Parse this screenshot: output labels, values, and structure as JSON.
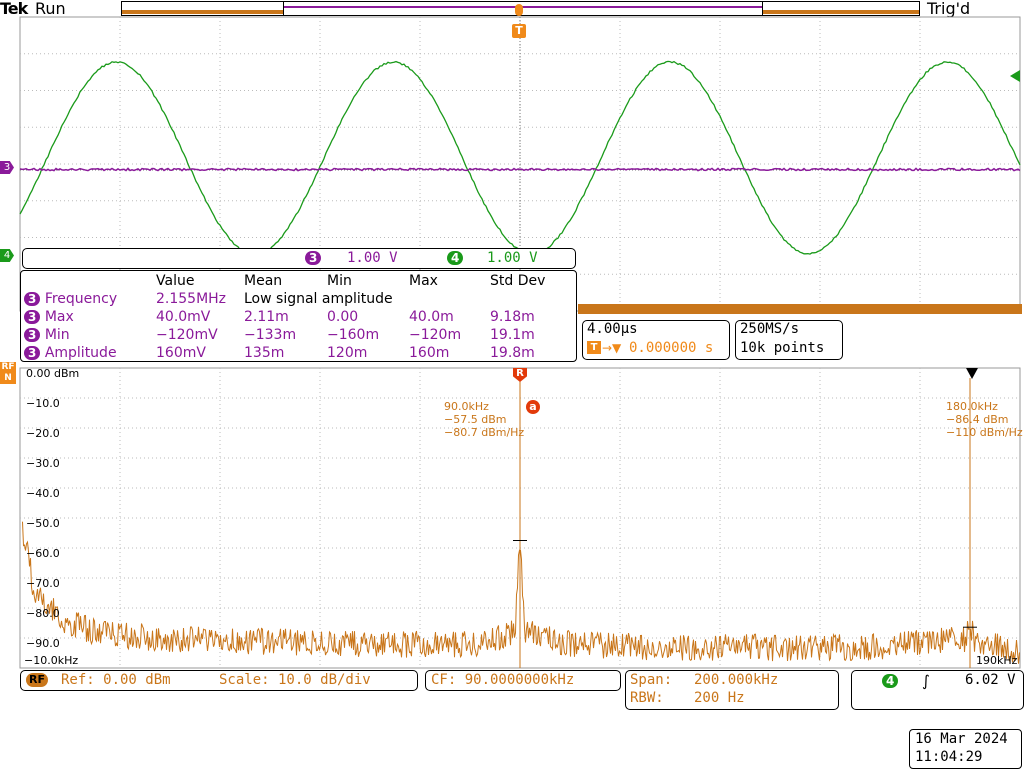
{
  "header": {
    "brand": "Tek",
    "run_status": "Run",
    "trigger_status": "Trig'd",
    "trigger_marker": "T"
  },
  "colors": {
    "ch3": "#8a1a9a",
    "ch4": "#1a9a1a",
    "rf": "#c9761a",
    "marker_ref": "#e23a0a"
  },
  "channel_bar": {
    "ch3": {
      "num": "3",
      "scale": "1.00 V"
    },
    "ch4": {
      "num": "4",
      "scale": "1.00 V"
    }
  },
  "measurements": {
    "headers": [
      "Value",
      "Mean",
      "Min",
      "Max",
      "Std Dev"
    ],
    "rows": [
      {
        "ch": "3",
        "name": "Frequency",
        "value": "2.155MHz",
        "note": "Low signal amplitude"
      },
      {
        "ch": "3",
        "name": "Max",
        "value": "40.0mV",
        "mean": "2.11m",
        "min": "0.00",
        "max": "40.0m",
        "std": "9.18m"
      },
      {
        "ch": "3",
        "name": "Min",
        "value": "−120mV",
        "mean": "−133m",
        "min": "−160m",
        "max": "−120m",
        "std": "19.1m"
      },
      {
        "ch": "3",
        "name": "Amplitude",
        "value": "160mV",
        "mean": "135m",
        "min": "120m",
        "max": "160m",
        "std": "19.8m"
      }
    ]
  },
  "timebase": {
    "scale": "4.00µs",
    "position": "0.000000 s",
    "sample_rate": "250MS/s",
    "record_length": "10k points"
  },
  "rf_badge": {
    "top": "RF",
    "bottom": "N"
  },
  "spectrum": {
    "y_labels": [
      "0.00 dBm",
      "−10.0",
      "−20.0",
      "−30.0",
      "−40.0",
      "−50.0",
      "−60.0",
      "−70.0",
      "−80.0",
      "−90.0"
    ],
    "x_start_label": "−10.0kHz",
    "x_end_label": "190kHz",
    "markers": [
      {
        "label": "R",
        "freq": "90.0kHz",
        "level": "−57.5 dBm",
        "density": "−80.7 dBm/Hz",
        "circle": "a"
      },
      {
        "label": "",
        "freq": "180.0kHz",
        "level": "−86.4 dBm",
        "density": "−110 dBm/Hz"
      }
    ]
  },
  "bottom_bar": {
    "rf_label": "RF",
    "ref": "Ref: 0.00 dBm",
    "scale": "Scale: 10.0 dB/div",
    "cf": "CF:  90.0000000kHz",
    "span_label": "Span:",
    "span_value": "200.000kHz",
    "rbw_label": "RBW:",
    "rbw_value": "200 Hz",
    "trigger_channel": "4",
    "trigger_level": "6.02 V"
  },
  "date": "16 Mar  2024",
  "time": "11:04:29",
  "chart_data": {
    "type": "line",
    "title": "",
    "xlabel": "",
    "ylabel": "",
    "x_range_khz": [
      -10,
      190
    ],
    "ylim": [
      -100,
      0
    ],
    "series": [
      {
        "name": "",
        "x": [
          -10,
          -7,
          -4,
          -1,
          2,
          5,
          10,
          20,
          40,
          60,
          80,
          89,
          90,
          91,
          100,
          120,
          140,
          160,
          179,
          180,
          181,
          190
        ],
        "values": [
          -50,
          -78,
          -82,
          -86,
          -88,
          -90,
          -91,
          -92,
          -93,
          -94,
          -94,
          -90,
          -57.5,
          -90,
          -94,
          -95,
          -95,
          -95,
          -92,
          -86.4,
          -93,
          -96
        ]
      }
    ]
  }
}
